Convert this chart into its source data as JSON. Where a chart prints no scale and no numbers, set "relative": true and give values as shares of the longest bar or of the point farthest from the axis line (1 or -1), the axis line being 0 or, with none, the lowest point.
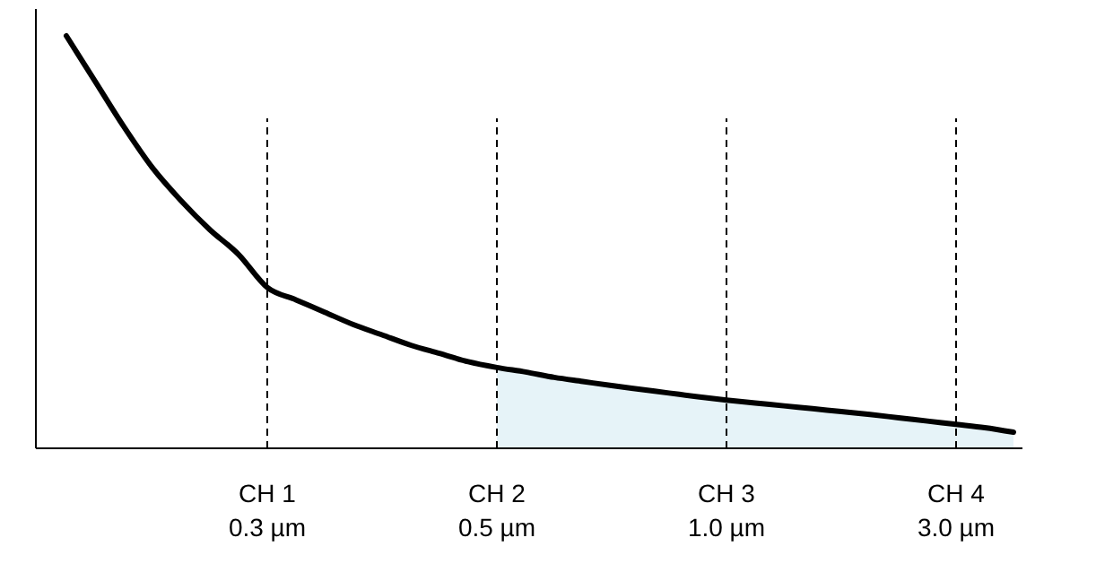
{
  "chart_data": {
    "type": "line",
    "relative": true,
    "categories": [
      null,
      null,
      null,
      null,
      null,
      null,
      null,
      "CH 1\n0.3 µm",
      null,
      null,
      null,
      null,
      null,
      null,
      null,
      "CH 2\n0.5 µm",
      null,
      null,
      null,
      null,
      null,
      null,
      null,
      "CH 3\n1.0 µm",
      null,
      null,
      null,
      null,
      null,
      null,
      null,
      "CH 4\n3.0 µm",
      null,
      null
    ],
    "series": [
      {
        "type": "area",
        "color": "#e6f3f8",
        "values": [
          null,
          null,
          null,
          null,
          null,
          null,
          null,
          null,
          null,
          null,
          null,
          null,
          null,
          null,
          null,
          0.196,
          0.185,
          0.172,
          0.162,
          0.152,
          0.143,
          0.134,
          0.125,
          0.117,
          0.11,
          0.103,
          0.096,
          0.089,
          0.082,
          0.074,
          0.066,
          0.058,
          0.05,
          0.039
        ]
      },
      {
        "color": "#000000",
        "values": [
          1,
          0.89,
          0.78,
          0.68,
          0.6,
          0.53,
          0.47,
          0.39,
          0.36,
          0.33,
          0.3,
          0.275,
          0.25,
          0.23,
          0.21,
          0.196,
          0.185,
          0.172,
          0.162,
          0.152,
          0.143,
          0.134,
          0.125,
          0.117,
          0.11,
          0.103,
          0.096,
          0.089,
          0.082,
          0.074,
          0.066,
          0.058,
          0.05,
          0.039
        ]
      }
    ],
    "ref_lines": [
      {
        "axis": "x",
        "value": "CH 1\n0.3 µm",
        "color": "#000000",
        "line_style": "dashed"
      },
      {
        "axis": "x",
        "value": "CH 2\n0.5 µm",
        "color": "#000000",
        "line_style": "dashed"
      },
      {
        "axis": "x",
        "value": "CH 3\n1.0 µm",
        "color": "#000000",
        "line_style": "dashed"
      },
      {
        "axis": "x",
        "value": "CH 4\n3.0 µm",
        "color": "#000000",
        "line_style": "dashed"
      }
    ]
  }
}
